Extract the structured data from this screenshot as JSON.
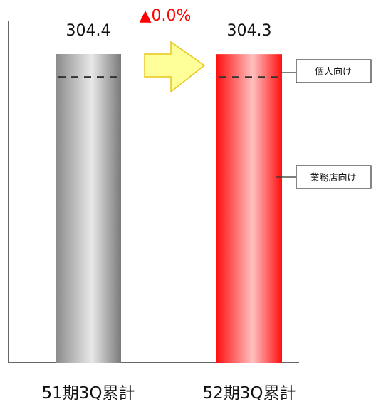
{
  "chart_data": {
    "type": "bar",
    "categories": [
      "51期3Q累計",
      "52期3Q累計"
    ],
    "values": [
      304.4,
      304.3
    ],
    "data_labels": [
      "304.4",
      "304.3"
    ],
    "change_label": {
      "marker": "▲",
      "text": "0.0%",
      "color": "#ff0000"
    },
    "series_colors": [
      "#9a9a9a",
      "#ff1a1a"
    ],
    "annotations": [
      {
        "label": "個人向け",
        "target_segment": "upper"
      },
      {
        "label": "業務店向け",
        "target_segment": "lower"
      }
    ],
    "segment_divider": "dashed",
    "arrow_color": "#ffff99",
    "grid": false,
    "y_axis_ticks": false
  }
}
